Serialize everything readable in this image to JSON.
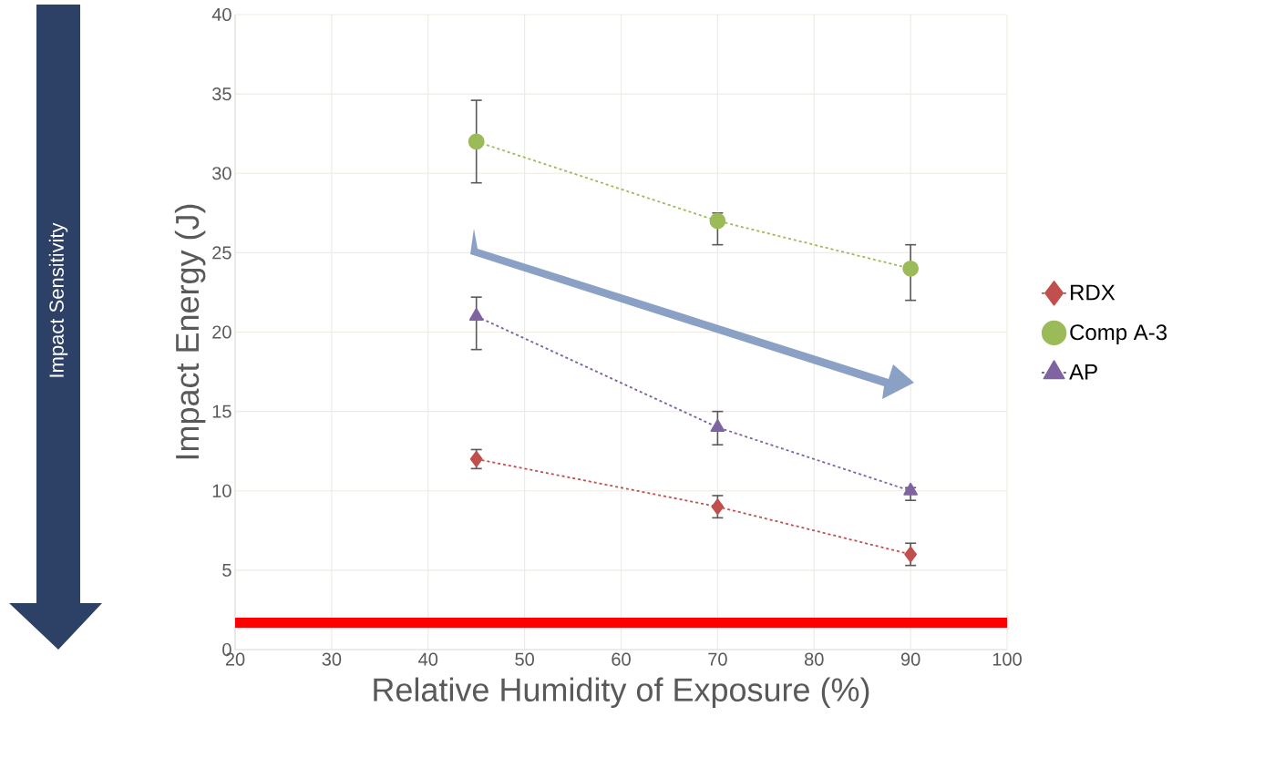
{
  "chart_data": {
    "type": "line",
    "xlabel": "Relative Humidity of Exposure (%)",
    "ylabel": "Impact Energy (J)",
    "x": [
      45,
      70,
      90
    ],
    "xlim": [
      20,
      100
    ],
    "xticks": [
      20,
      30,
      40,
      50,
      60,
      70,
      80,
      90,
      100
    ],
    "ylim": [
      0,
      40
    ],
    "yticks": [
      0,
      5,
      10,
      15,
      20,
      25,
      30,
      35,
      40
    ],
    "grid": true,
    "legend": "right",
    "line_style": "dashed",
    "series": [
      {
        "name": "RDX",
        "color": "#c0504d",
        "marker": "diamond",
        "values": [
          12,
          9,
          6
        ],
        "errors": [
          0.6,
          0.7,
          0.7
        ]
      },
      {
        "name": "Comp A-3",
        "color": "#9bbb59",
        "marker": "circle",
        "values": [
          32,
          27,
          24
        ],
        "errors": [
          2.6,
          [
            25.5,
            27.5
          ],
          [
            22.0,
            25.5
          ]
        ]
      },
      {
        "name": "AP",
        "color": "#8064a2",
        "marker": "triangle",
        "values": [
          21,
          14,
          10
        ],
        "errors": [
          [
            18.9,
            22.2
          ],
          [
            12.9,
            15.0
          ],
          [
            9.4,
            10.2
          ]
        ]
      }
    ],
    "ref_lines": [
      {
        "axis": "y",
        "value": 1.7,
        "color": "#ff0000"
      }
    ],
    "annotations": [
      "Impact Sensitivity"
    ]
  }
}
